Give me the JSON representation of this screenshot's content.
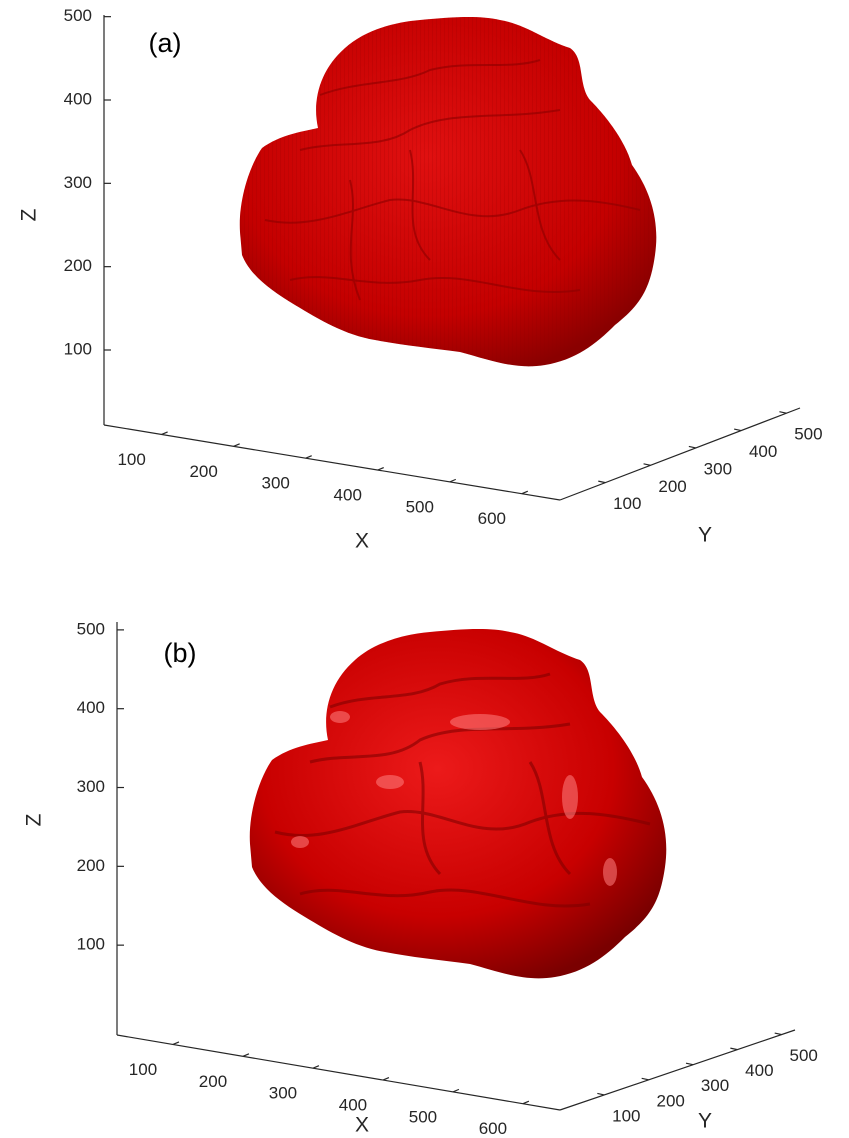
{
  "chart_data": [
    {
      "type": "surface3d",
      "panel_label": "(a)",
      "xlabel": "X",
      "ylabel": "Y",
      "zlabel": "Z",
      "xlim": [
        20,
        653
      ],
      "ylim": [
        0,
        530
      ],
      "zlim": [
        10,
        502
      ],
      "xticks": [
        100,
        200,
        300,
        400,
        500,
        600
      ],
      "yticks": [
        100,
        200,
        300,
        400,
        500
      ],
      "zticks": [
        100,
        200,
        300,
        400,
        500
      ],
      "color": "#d40000"
    },
    {
      "type": "surface3d",
      "panel_label": "(b)",
      "xlabel": "X",
      "ylabel": "Y",
      "zlabel": "Z",
      "xlim": [
        20,
        653
      ],
      "ylim": [
        0,
        530
      ],
      "zlim": [
        -14,
        510
      ],
      "xticks": [
        100,
        200,
        300,
        400,
        500,
        600
      ],
      "yticks": [
        100,
        200,
        300,
        400,
        500
      ],
      "zticks": [
        100,
        200,
        300,
        400,
        500
      ],
      "color": "#d40000"
    }
  ]
}
